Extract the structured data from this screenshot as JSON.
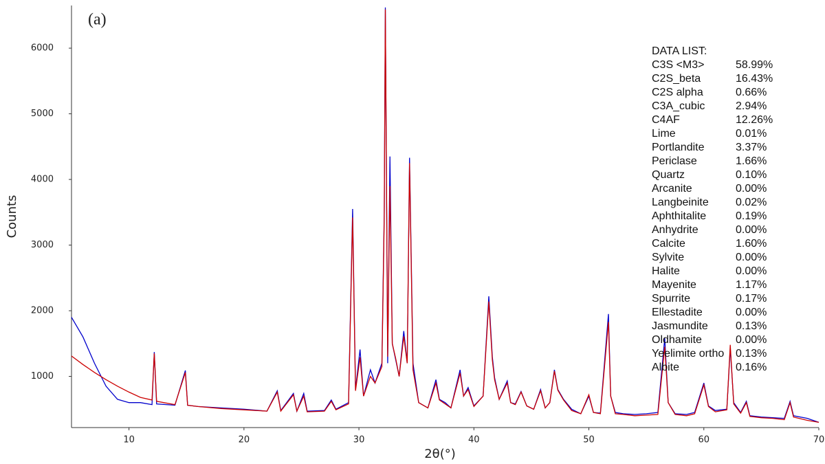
{
  "chart_data": {
    "type": "line",
    "title": "(a)",
    "x_label": "2θ(°)",
    "y_label": "Counts",
    "xlim": [
      5,
      70
    ],
    "ylim": [
      220,
      6650
    ],
    "xticks": [
      10,
      20,
      30,
      40,
      50,
      60,
      70
    ],
    "yticks": [
      1000,
      2000,
      3000,
      4000,
      5000,
      6000
    ],
    "x": [
      5,
      6,
      7,
      8,
      9,
      10,
      11,
      12,
      12.2,
      12.4,
      14,
      14.9,
      15.1,
      16,
      18,
      20,
      22,
      22.9,
      23.2,
      24.3,
      24.6,
      25.2,
      25.5,
      27,
      27.6,
      28,
      29.1,
      29.45,
      29.7,
      30.1,
      30.4,
      31,
      31.4,
      32,
      32.2,
      32.3,
      32.5,
      32.7,
      32.9,
      33.2,
      33.5,
      33.9,
      34.2,
      34.4,
      34.7,
      35.2,
      36,
      36.7,
      37,
      37.5,
      38,
      38.8,
      39.1,
      39.5,
      40,
      40.8,
      41.3,
      41.6,
      41.8,
      42.2,
      42.9,
      43.2,
      43.6,
      44.1,
      44.6,
      45.2,
      45.8,
      46.2,
      46.6,
      47,
      47.3,
      47.8,
      48.5,
      49.3,
      50,
      50.4,
      51,
      51.7,
      51.9,
      52.3,
      53,
      54,
      55,
      56,
      56.6,
      56.9,
      57.5,
      58.5,
      59.2,
      60,
      60.4,
      61,
      62,
      62.3,
      62.6,
      63.2,
      63.7,
      64,
      65,
      66,
      67,
      67.5,
      67.8,
      69,
      70
    ],
    "series": [
      {
        "color": "#0000cc",
        "values": [
          1900,
          1600,
          1200,
          850,
          650,
          600,
          600,
          570,
          1370,
          580,
          560,
          1090,
          560,
          540,
          520,
          500,
          470,
          780,
          480,
          740,
          470,
          740,
          470,
          480,
          640,
          500,
          600,
          3550,
          800,
          1410,
          700,
          1100,
          900,
          1200,
          3500,
          6620,
          1200,
          4350,
          1500,
          1250,
          1000,
          1690,
          1200,
          4330,
          1200,
          600,
          520,
          950,
          650,
          600,
          520,
          1100,
          700,
          830,
          550,
          700,
          2220,
          1300,
          980,
          650,
          930,
          600,
          580,
          770,
          550,
          500,
          800,
          520,
          600,
          1100,
          800,
          650,
          500,
          430,
          700,
          450,
          440,
          1950,
          700,
          450,
          430,
          420,
          430,
          450,
          1580,
          600,
          430,
          420,
          450,
          900,
          550,
          480,
          500,
          1430,
          600,
          450,
          620,
          400,
          380,
          370,
          360,
          620,
          400,
          360,
          300
        ]
      },
      {
        "color": "#cc0000",
        "values": [
          1310,
          1180,
          1060,
          950,
          850,
          760,
          680,
          640,
          1350,
          620,
          570,
          1060,
          560,
          540,
          510,
          490,
          470,
          760,
          470,
          720,
          470,
          700,
          460,
          470,
          620,
          490,
          580,
          3420,
          780,
          1290,
          700,
          1000,
          900,
          1150,
          3400,
          6590,
          1300,
          3900,
          1500,
          1270,
          1000,
          1610,
          1200,
          4250,
          1100,
          600,
          520,
          900,
          640,
          580,
          520,
          1050,
          700,
          800,
          540,
          700,
          2140,
          1250,
          950,
          650,
          900,
          600,
          570,
          760,
          550,
          500,
          780,
          520,
          600,
          1080,
          790,
          640,
          480,
          430,
          720,
          450,
          430,
          1830,
          700,
          430,
          420,
          400,
          410,
          420,
          1450,
          600,
          420,
          400,
          430,
          870,
          540,
          460,
          490,
          1480,
          580,
          440,
          600,
          390,
          370,
          360,
          340,
          600,
          380,
          330,
          300
        ]
      }
    ],
    "data_list": {
      "title": "DATA LIST:",
      "entries": [
        [
          "C3S <M3>",
          "58.99%"
        ],
        [
          "C2S_beta",
          "16.43%"
        ],
        [
          "C2S alpha",
          "0.66%"
        ],
        [
          "C3A_cubic",
          "2.94%"
        ],
        [
          "C4AF",
          "12.26%"
        ],
        [
          "Lime",
          "0.01%"
        ],
        [
          "Portlandite",
          "3.37%"
        ],
        [
          "Periclase",
          "1.66%"
        ],
        [
          "Quartz",
          "0.10%"
        ],
        [
          "Arcanite",
          "0.00%"
        ],
        [
          "Langbeinite",
          "0.02%"
        ],
        [
          "Aphthitalite",
          "0.19%"
        ],
        [
          "Anhydrite",
          "0.00%"
        ],
        [
          "Calcite",
          "1.60%"
        ],
        [
          "Sylvite",
          "0.00%"
        ],
        [
          "Halite",
          "0.00%"
        ],
        [
          "Mayenite",
          "1.17%"
        ],
        [
          "Spurrite",
          "0.17%"
        ],
        [
          "Ellestadite",
          "0.00%"
        ],
        [
          "Jasmundite",
          "0.13%"
        ],
        [
          "Oldhamite",
          "0.00%"
        ],
        [
          "Yeelimite ortho",
          "0.13%"
        ],
        [
          "Albite",
          "0.16%"
        ]
      ]
    }
  }
}
